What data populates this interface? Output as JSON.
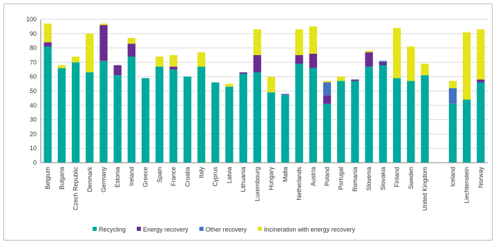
{
  "chart_data": {
    "type": "bar",
    "stacked": true,
    "title": "",
    "xlabel": "",
    "ylabel": "",
    "ylim": [
      0,
      100
    ],
    "yticks": [
      0,
      10,
      20,
      30,
      40,
      50,
      60,
      70,
      80,
      90,
      100
    ],
    "grid": true,
    "legend_position": "bottom",
    "categories": [
      "Belgium",
      "Bulgaria",
      "Czech Republic",
      "Denmark",
      "Germany",
      "Estonia",
      "Ireland",
      "Greece",
      "Spain",
      "France",
      "Croatia",
      "Italy",
      "Cyprus",
      "Latvia",
      "Lithuania",
      "Luxembourg",
      "Hungary",
      "Malta",
      "Netherlands",
      "Austria",
      "Poland",
      "Portugal",
      "Romania",
      "Slovenia",
      "Slovakia",
      "Finland",
      "Sweden",
      "United Kingdom",
      "",
      "Iceland",
      "Liechtenstein",
      "Norway"
    ],
    "series": [
      {
        "name": "Recycling",
        "color": "#00a99d",
        "values": [
          81,
          66,
          70,
          63,
          71,
          61,
          74,
          59,
          67,
          65,
          60,
          67,
          56,
          53,
          62,
          63,
          49,
          47,
          69,
          66,
          41,
          57,
          57,
          67,
          68,
          59,
          57,
          61,
          null,
          41,
          44,
          56
        ]
      },
      {
        "name": "Energy recovery",
        "color": "#6a2c91",
        "values": [
          3,
          0,
          0,
          0,
          25,
          7,
          9,
          0,
          0,
          2,
          0,
          0,
          0,
          0,
          1,
          12,
          0,
          0,
          6,
          10,
          6,
          0,
          1,
          10,
          2,
          0,
          0,
          0,
          null,
          0,
          0,
          2
        ]
      },
      {
        "name": "Other recovery",
        "color": "#4472c4",
        "values": [
          0,
          0,
          0,
          0,
          0,
          0,
          0,
          0,
          0,
          0,
          0,
          0,
          0,
          0,
          0,
          0,
          0,
          1,
          0,
          0,
          9,
          0,
          0,
          0,
          1,
          0,
          0,
          0,
          null,
          11,
          0,
          0
        ]
      },
      {
        "name": "Incineration with energy recovery",
        "color": "#e4e31c",
        "values": [
          13,
          2,
          4,
          27,
          1,
          0,
          4,
          0,
          7,
          8,
          0,
          10,
          0,
          2,
          0,
          18,
          11,
          0,
          18,
          19,
          1,
          3,
          0,
          1,
          0,
          35,
          24,
          8,
          null,
          5,
          47,
          35
        ]
      }
    ]
  }
}
